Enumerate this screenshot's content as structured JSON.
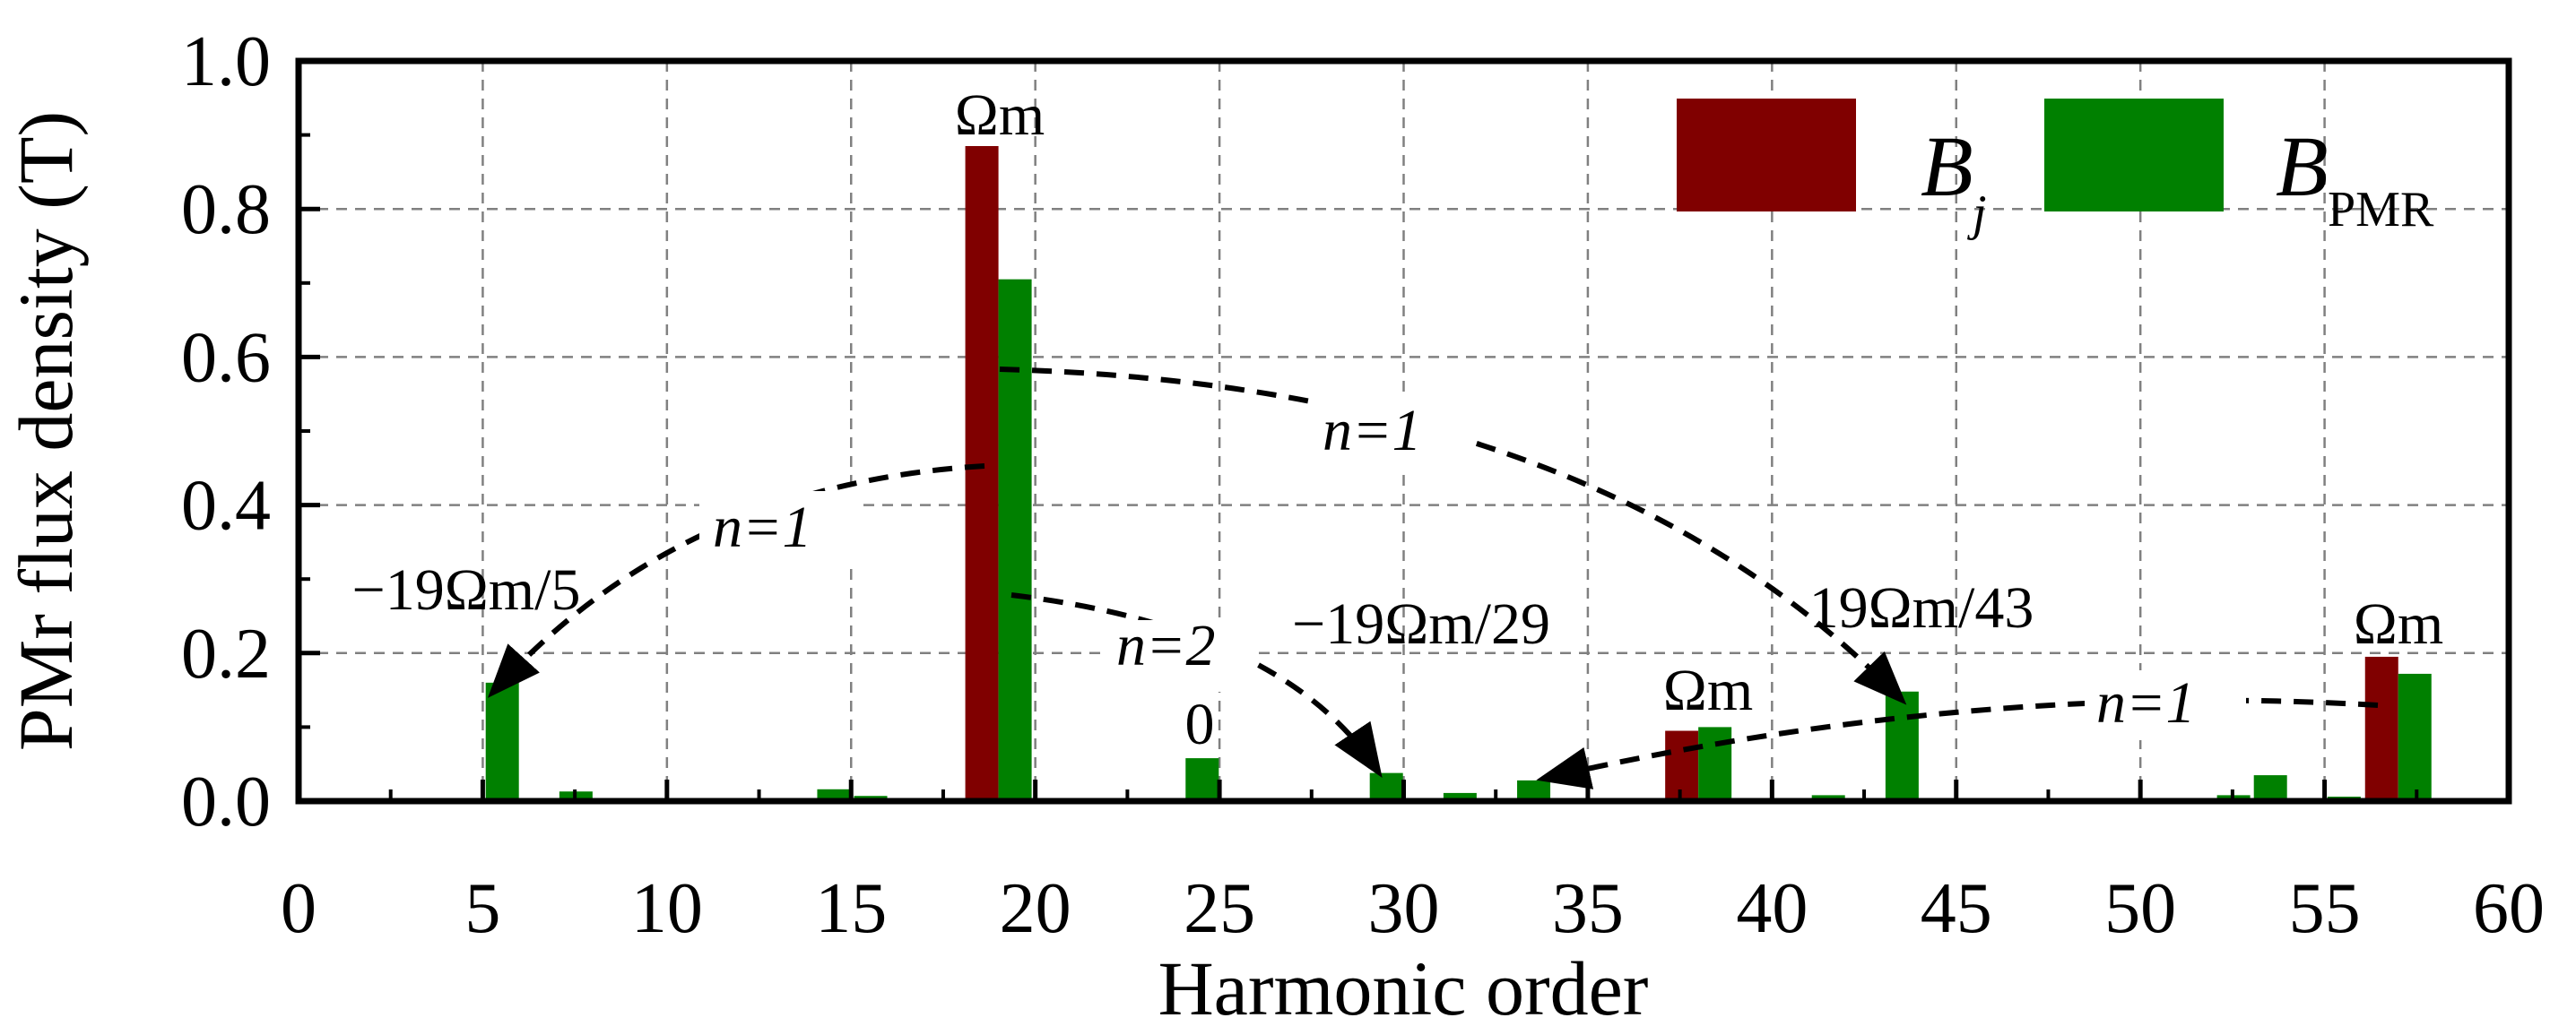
{
  "chart_data": {
    "type": "bar",
    "xlabel": "Harmonic order",
    "ylabel": "PMr flux density (T)",
    "xlim": [
      0,
      60
    ],
    "ylim": [
      0,
      1.0
    ],
    "x_ticks": [
      "0",
      "5",
      "10",
      "15",
      "20",
      "25",
      "30",
      "35",
      "40",
      "45",
      "50",
      "55",
      "60"
    ],
    "y_ticks": [
      "0.0",
      "0.2",
      "0.4",
      "0.6",
      "0.8",
      "1.0"
    ],
    "grid": true,
    "legend_position": "top-right",
    "series": [
      {
        "name": "B_j",
        "label_main": "B",
        "label_sub": "j",
        "color": "#800000",
        "points": [
          {
            "x": 19,
            "y": 0.885
          },
          {
            "x": 38,
            "y": 0.095
          },
          {
            "x": 57,
            "y": 0.195
          }
        ]
      },
      {
        "name": "B_PMR",
        "label_main": "B",
        "label_sub": "PMR",
        "color": "#008000",
        "points": [
          {
            "x": 5,
            "y": 0.16
          },
          {
            "x": 7,
            "y": 0.013
          },
          {
            "x": 9,
            "y": 0.003
          },
          {
            "x": 12,
            "y": 0.002
          },
          {
            "x": 14,
            "y": 0.016
          },
          {
            "x": 15,
            "y": 0.007
          },
          {
            "x": 19,
            "y": 0.705
          },
          {
            "x": 24,
            "y": 0.058
          },
          {
            "x": 29,
            "y": 0.038
          },
          {
            "x": 31,
            "y": 0.011
          },
          {
            "x": 33,
            "y": 0.028
          },
          {
            "x": 36,
            "y": 0.002
          },
          {
            "x": 38,
            "y": 0.1
          },
          {
            "x": 41,
            "y": 0.008
          },
          {
            "x": 43,
            "y": 0.148
          },
          {
            "x": 48,
            "y": 0.002
          },
          {
            "x": 52,
            "y": 0.008
          },
          {
            "x": 53,
            "y": 0.035
          },
          {
            "x": 55,
            "y": 0.006
          },
          {
            "x": 57,
            "y": 0.172
          },
          {
            "x": 58,
            "y": 0.002
          }
        ]
      }
    ],
    "annotations": {
      "omega_19": "Ωm",
      "omega_38": "Ωm",
      "omega_57": "Ωm",
      "h5": "−19Ωm/5",
      "h24": "0",
      "h29": "−19Ωm/29",
      "h43": "19Ωm/43",
      "n1_left": "n=1",
      "n1_center": "n=1",
      "n1_right": "n=1",
      "n2": "n=2"
    }
  }
}
